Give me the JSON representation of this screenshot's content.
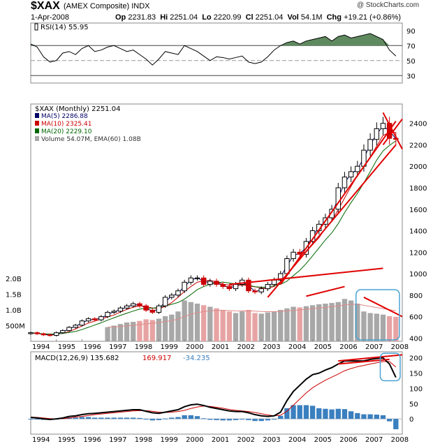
{
  "header": {
    "symbol": "$XAX",
    "name": "(AMEX Composite) INDX",
    "brand": "@ StockCharts.com",
    "date": "1-Apr-2008",
    "open_label": "Op",
    "open": "2231.83",
    "high_label": "Hi",
    "high": "2251.04",
    "low_label": "Lo",
    "low": "2220.99",
    "close_label": "Cl",
    "close": "2251.04",
    "vol_label": "Vol",
    "vol": "54.1M",
    "chg_label": "Chg",
    "chg": "+19.21 (+0.86%)"
  },
  "colors": {
    "up": "#000000",
    "down": "#cc0000",
    "ma5": "#000066",
    "ma10": "#cc0000",
    "ma20": "#006600",
    "vol_up": "#a8a8a8",
    "vol_down": "#e7a3a3",
    "trendline": "#e00000",
    "highlight": "#4aa3d6",
    "rsi_fill": "#5f8a5f",
    "macd_hist": "#3a7fbf"
  },
  "chart_data": [
    {
      "type": "line",
      "panel": "rsi",
      "legend": "RSI(14) 55.95",
      "ylim": [
        20,
        100
      ],
      "ticks": [
        "90",
        "70",
        "50",
        "30"
      ],
      "reference_levels": [
        70,
        50,
        30
      ],
      "x": [
        "1994-01",
        "1994-04",
        "1994-07",
        "1994-10",
        "1995-01",
        "1995-04",
        "1995-07",
        "1995-10",
        "1996-01",
        "1996-04",
        "1996-07",
        "1996-10",
        "1997-01",
        "1997-04",
        "1997-07",
        "1997-10",
        "1998-01",
        "1998-04",
        "1998-07",
        "1998-10",
        "1999-01",
        "1999-04",
        "1999-07",
        "1999-10",
        "2000-01",
        "2000-04",
        "2000-07",
        "2000-10",
        "2001-01",
        "2001-04",
        "2001-07",
        "2001-10",
        "2002-01",
        "2002-04",
        "2002-07",
        "2002-10",
        "2003-01",
        "2003-04",
        "2003-07",
        "2003-10",
        "2004-01",
        "2004-04",
        "2004-07",
        "2004-10",
        "2005-01",
        "2005-04",
        "2005-07",
        "2005-10",
        "2006-01",
        "2006-04",
        "2006-07",
        "2006-10",
        "2007-01",
        "2007-04",
        "2007-07",
        "2007-10",
        "2008-01",
        "2008-04"
      ],
      "values": [
        72,
        68,
        55,
        48,
        50,
        60,
        62,
        58,
        66,
        70,
        62,
        64,
        68,
        70,
        66,
        62,
        64,
        58,
        52,
        44,
        52,
        62,
        60,
        58,
        70,
        66,
        62,
        56,
        50,
        55,
        54,
        52,
        54,
        56,
        48,
        46,
        48,
        55,
        64,
        70,
        74,
        76,
        72,
        76,
        78,
        80,
        82,
        76,
        82,
        84,
        80,
        82,
        84,
        86,
        82,
        78,
        64,
        56
      ]
    },
    {
      "type": "candlestick",
      "panel": "price",
      "title": "$XAX (Monthly) 2251.04",
      "legend": [
        "MA(5) 2286.88",
        "MA(10) 2325.41",
        "MA(20) 2229.10",
        "Volume 54.07M, EMA(60) 1.08B"
      ],
      "x_ticks": [
        "1994",
        "1995",
        "1996",
        "1997",
        "1998",
        "1999",
        "2000",
        "2001",
        "2002",
        "2003",
        "2004",
        "2005",
        "2006",
        "2007",
        "2008"
      ],
      "y_ticks": [
        "2400",
        "2200",
        "2000",
        "1800",
        "1600",
        "1400",
        "1200",
        "1000",
        "800",
        "600",
        "400"
      ],
      "ylim": [
        370,
        2580
      ],
      "volume_ticks": [
        "2.0B",
        "1.5B",
        "1.0B",
        "500M"
      ],
      "x": [
        "1994-01",
        "1994-04",
        "1994-07",
        "1994-10",
        "1995-01",
        "1995-04",
        "1995-07",
        "1995-10",
        "1996-01",
        "1996-04",
        "1996-07",
        "1996-10",
        "1997-01",
        "1997-04",
        "1997-07",
        "1997-10",
        "1998-01",
        "1998-04",
        "1998-07",
        "1998-10",
        "1999-01",
        "1999-04",
        "1999-07",
        "1999-10",
        "2000-01",
        "2000-04",
        "2000-07",
        "2000-10",
        "2001-01",
        "2001-04",
        "2001-07",
        "2001-10",
        "2002-01",
        "2002-04",
        "2002-07",
        "2002-10",
        "2003-01",
        "2003-04",
        "2003-07",
        "2003-10",
        "2004-01",
        "2004-04",
        "2004-07",
        "2004-10",
        "2005-01",
        "2005-04",
        "2005-07",
        "2005-10",
        "2006-01",
        "2006-04",
        "2006-07",
        "2006-10",
        "2007-01",
        "2007-04",
        "2007-07",
        "2007-10",
        "2008-01",
        "2008-04"
      ],
      "close": [
        450,
        440,
        430,
        425,
        450,
        470,
        500,
        520,
        560,
        580,
        570,
        600,
        640,
        650,
        680,
        700,
        720,
        700,
        660,
        640,
        700,
        780,
        800,
        840,
        920,
        960,
        960,
        900,
        930,
        900,
        880,
        860,
        900,
        940,
        840,
        830,
        860,
        900,
        940,
        1000,
        1140,
        1200,
        1180,
        1300,
        1400,
        1460,
        1520,
        1600,
        1800,
        1900,
        1950,
        2000,
        2150,
        2250,
        2350,
        2400,
        2260,
        2251
      ],
      "volume": [
        null,
        null,
        null,
        null,
        null,
        null,
        null,
        null,
        null,
        null,
        null,
        null,
        0.45,
        0.5,
        0.55,
        0.6,
        0.62,
        0.65,
        0.7,
        0.68,
        0.72,
        0.8,
        0.85,
        0.95,
        1.3,
        1.25,
        1.2,
        1.15,
        1.1,
        1.05,
        1.0,
        0.95,
        0.9,
        0.95,
        1.0,
        0.9,
        0.88,
        0.92,
        0.95,
        1.0,
        1.05,
        1.1,
        1.08,
        1.12,
        1.15,
        1.18,
        1.2,
        1.22,
        1.25,
        1.35,
        1.3,
        1.2,
        0.95,
        0.9,
        0.88,
        0.85,
        0.8,
        0.78
      ]
    },
    {
      "type": "line",
      "panel": "macd",
      "legend": [
        "MACD(12,26,9) 135.682",
        "169.917",
        "-34.235"
      ],
      "ylim": [
        -50,
        220
      ],
      "ticks": [
        "200",
        "150",
        "100",
        "50",
        "0"
      ],
      "x_ticks": [
        "1994",
        "1995",
        "1996",
        "1997",
        "1998",
        "1999",
        "2000",
        "2001",
        "2002",
        "2003",
        "2004",
        "2005",
        "2006",
        "2007",
        "2008"
      ],
      "x": [
        "1994-01",
        "1994-04",
        "1994-07",
        "1994-10",
        "1995-01",
        "1995-04",
        "1995-07",
        "1995-10",
        "1996-01",
        "1996-04",
        "1996-07",
        "1996-10",
        "1997-01",
        "1997-04",
        "1997-07",
        "1997-10",
        "1998-01",
        "1998-04",
        "1998-07",
        "1998-10",
        "1999-01",
        "1999-04",
        "1999-07",
        "1999-10",
        "2000-01",
        "2000-04",
        "2000-07",
        "2000-10",
        "2001-01",
        "2001-04",
        "2001-07",
        "2001-10",
        "2002-01",
        "2002-04",
        "2002-07",
        "2002-10",
        "2003-01",
        "2003-04",
        "2003-07",
        "2003-10",
        "2004-01",
        "2004-04",
        "2004-07",
        "2004-10",
        "2005-01",
        "2005-04",
        "2005-07",
        "2005-10",
        "2006-01",
        "2006-04",
        "2006-07",
        "2006-10",
        "2007-01",
        "2007-04",
        "2007-07",
        "2007-10",
        "2008-01",
        "2008-04"
      ],
      "series": [
        {
          "name": "MACD(12,26,9)",
          "values": [
            5,
            3,
            0,
            -2,
            0,
            3,
            8,
            10,
            14,
            17,
            18,
            20,
            22,
            24,
            26,
            28,
            30,
            30,
            25,
            20,
            18,
            22,
            26,
            30,
            40,
            46,
            48,
            44,
            38,
            34,
            30,
            26,
            24,
            24,
            20,
            14,
            10,
            8,
            10,
            22,
            60,
            90,
            110,
            130,
            145,
            150,
            160,
            168,
            180,
            190,
            190,
            190,
            190,
            195,
            198,
            200,
            180,
            136
          ]
        },
        {
          "name": "",
          "values": [
            6,
            5,
            3,
            1,
            0,
            1,
            3,
            6,
            8,
            11,
            14,
            16,
            18,
            20,
            22,
            24,
            26,
            27,
            27,
            25,
            22,
            21,
            22,
            24,
            28,
            34,
            39,
            42,
            41,
            38,
            35,
            31,
            28,
            26,
            24,
            21,
            17,
            13,
            10,
            12,
            25,
            45,
            65,
            85,
            102,
            115,
            127,
            137,
            147,
            158,
            165,
            171,
            175,
            180,
            184,
            188,
            188,
            170
          ]
        },
        {
          "name": "",
          "values": [
            -1,
            -2,
            -3,
            -3,
            0,
            2,
            5,
            4,
            6,
            6,
            4,
            4,
            4,
            4,
            4,
            4,
            4,
            3,
            -2,
            -5,
            -4,
            1,
            4,
            6,
            12,
            12,
            9,
            2,
            -3,
            -4,
            -5,
            -5,
            -4,
            -2,
            -4,
            -7,
            -7,
            -5,
            0,
            10,
            35,
            45,
            45,
            45,
            43,
            35,
            33,
            31,
            33,
            32,
            25,
            19,
            15,
            15,
            14,
            12,
            -8,
            -34
          ]
        }
      ]
    }
  ]
}
